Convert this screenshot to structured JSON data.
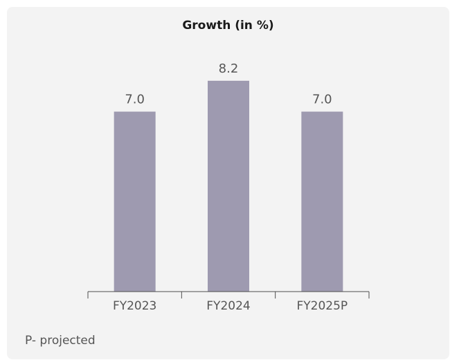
{
  "chart_data": {
    "type": "bar",
    "title": "Growth (in %)",
    "categories": [
      "FY2023",
      "FY2024",
      "FY2025P"
    ],
    "values": [
      7.0,
      8.2,
      7.0
    ],
    "value_labels": [
      "7.0",
      "8.2",
      "7.0"
    ],
    "xlabel": "",
    "ylabel": "",
    "ylim": [
      0,
      8.6
    ],
    "grid": false,
    "legend": "none"
  },
  "footnote": "P- projected",
  "colors": {
    "bar": "#9e9ab0",
    "axis": "#4d4d4d",
    "label_text": "#555555",
    "card_background": "#f3f3f3"
  }
}
